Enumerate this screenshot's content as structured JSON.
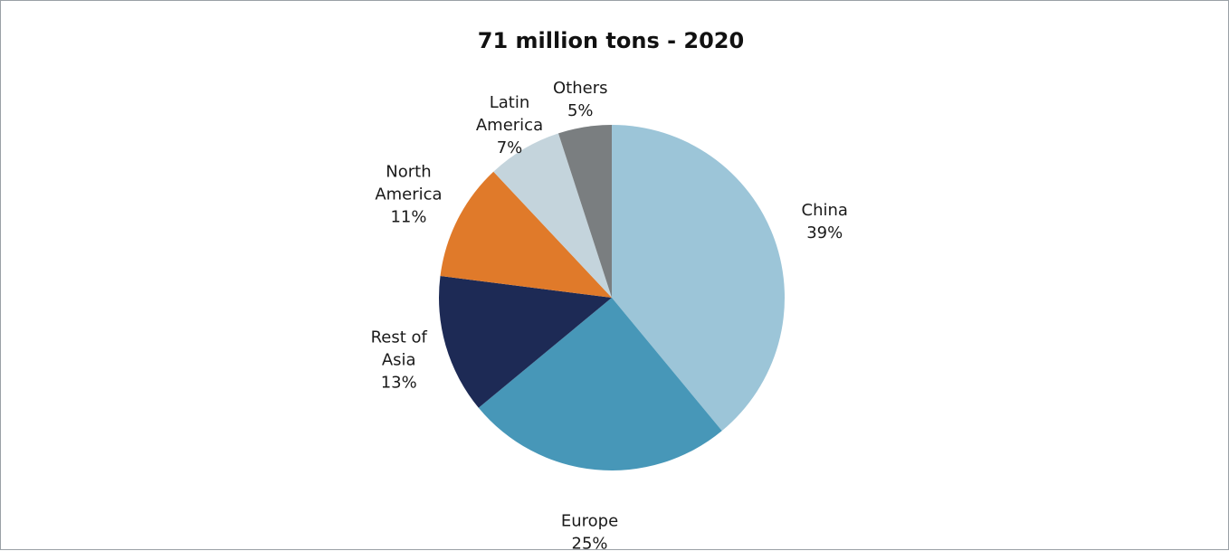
{
  "chart_data": {
    "type": "pie",
    "title": "71 million tons - 2020",
    "slices": [
      {
        "label_lines": [
          "China"
        ],
        "value_label": "39%",
        "value": 39,
        "color": "#9cc5d8"
      },
      {
        "label_lines": [
          "Europe"
        ],
        "value_label": "25%",
        "value": 25,
        "color": "#4797b8"
      },
      {
        "label_lines": [
          "Rest of",
          "Asia"
        ],
        "value_label": "13%",
        "value": 13,
        "color": "#1d2a55"
      },
      {
        "label_lines": [
          "North",
          "America"
        ],
        "value_label": "11%",
        "value": 11,
        "color": "#e07a2a"
      },
      {
        "label_lines": [
          "Latin",
          "America"
        ],
        "value_label": "7%",
        "value": 7,
        "color": "#c4d4dc"
      },
      {
        "label_lines": [
          "Others"
        ],
        "value_label": "5%",
        "value": 5,
        "color": "#7a7e80"
      }
    ]
  }
}
